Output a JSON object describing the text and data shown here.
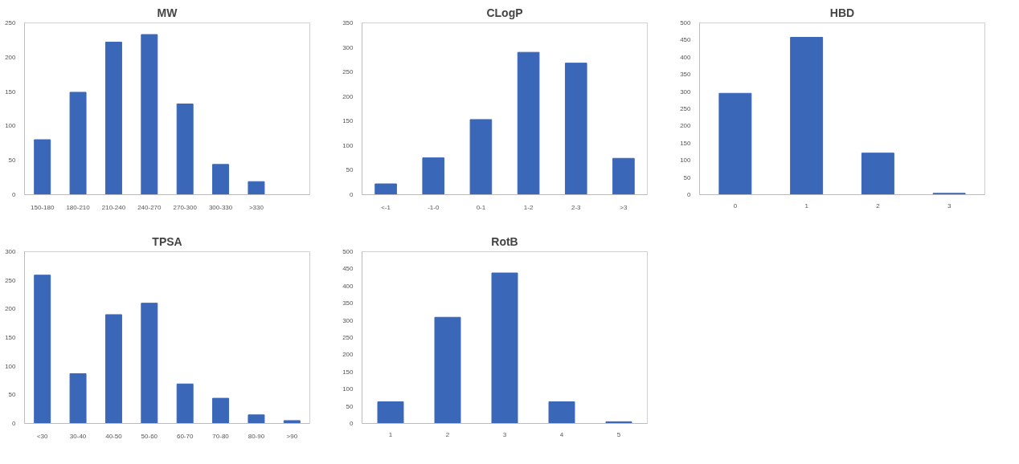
{
  "chart_data": [
    {
      "type": "bar",
      "title": "MW",
      "categories": [
        "150-180",
        "180-210",
        "210-240",
        "240-270",
        "270-300",
        "300-330",
        ">330",
        null
      ],
      "values": [
        80,
        149,
        222,
        233,
        132,
        44,
        19,
        null
      ],
      "color": "#3b67b8",
      "ylim": [
        0,
        250
      ],
      "yticks": [
        0,
        50,
        100,
        150,
        200,
        250
      ],
      "grid": false
    },
    {
      "type": "bar",
      "title": "CLogP",
      "categories": [
        "<-1",
        "-1-0",
        "0-1",
        "1-2",
        "2-3",
        ">3"
      ],
      "values": [
        22,
        75,
        153,
        290,
        268,
        74
      ],
      "color": "#3b67b8",
      "ylim": [
        0,
        350
      ],
      "yticks": [
        0,
        50,
        100,
        150,
        200,
        250,
        300,
        350
      ],
      "grid": false
    },
    {
      "type": "bar",
      "title": "HBD",
      "categories": [
        "0",
        "1",
        "2",
        "3"
      ],
      "values": [
        295,
        458,
        121,
        4
      ],
      "color": "#3b67b8",
      "ylim": [
        0,
        500
      ],
      "yticks": [
        0,
        50,
        100,
        150,
        200,
        250,
        300,
        350,
        400,
        450,
        500
      ],
      "grid": false
    },
    {
      "type": "bar",
      "title": "TPSA",
      "categories": [
        "<30",
        "30-40",
        "40-50",
        "50-60",
        "60-70",
        "70-80",
        "80-90",
        ">90"
      ],
      "values": [
        259,
        87,
        190,
        210,
        69,
        44,
        15,
        5
      ],
      "color": "#3b67b8",
      "ylim": [
        0,
        300
      ],
      "yticks": [
        0,
        50,
        100,
        150,
        200,
        250,
        300
      ],
      "grid": false
    },
    {
      "type": "bar",
      "title": "RotB",
      "categories": [
        "1",
        "2",
        "3",
        "4",
        "5"
      ],
      "values": [
        63,
        309,
        438,
        63,
        5
      ],
      "color": "#3b67b8",
      "ylim": [
        0,
        500
      ],
      "yticks": [
        0,
        50,
        100,
        150,
        200,
        250,
        300,
        350,
        400,
        450,
        500
      ],
      "grid": false
    }
  ]
}
